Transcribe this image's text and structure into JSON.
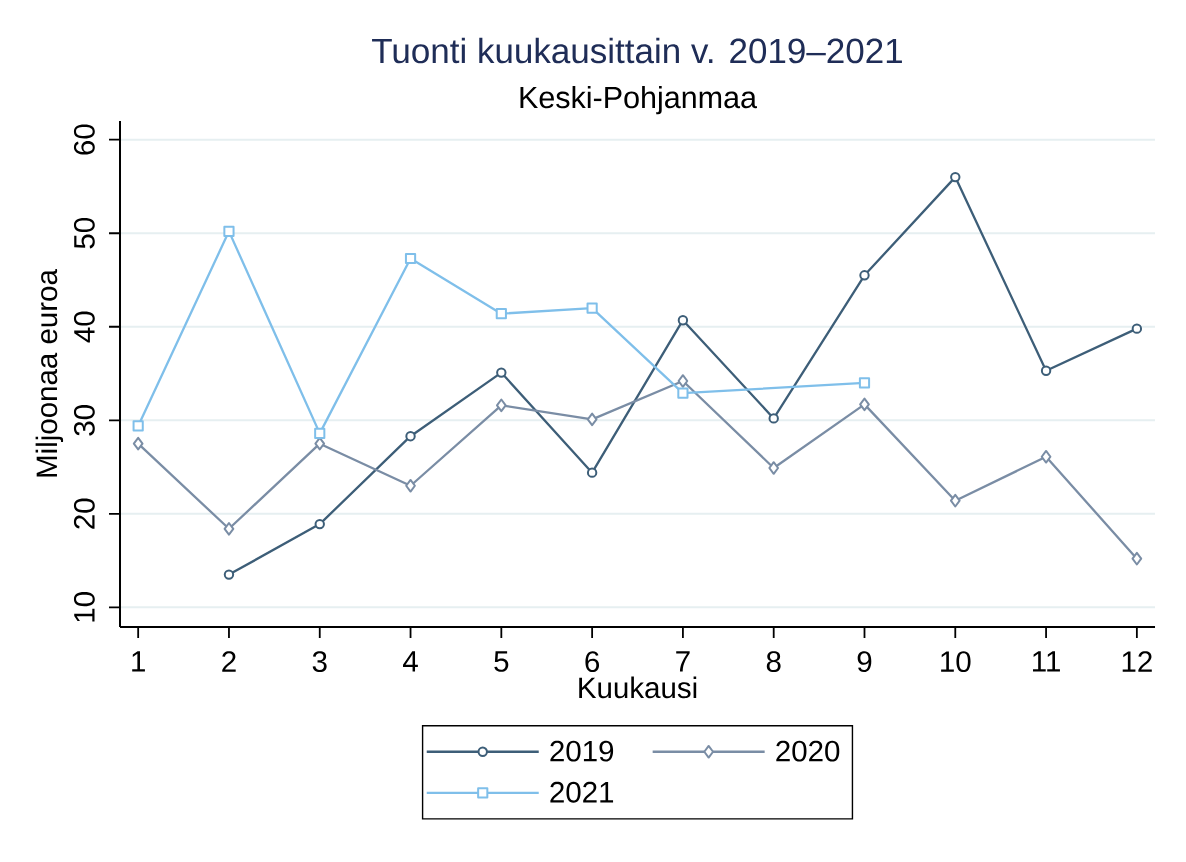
{
  "chart_data": {
    "type": "line",
    "title": "Tuonti kuukausittain v. 2019–2021",
    "subtitle": "Keski-Pohjanmaa",
    "xlabel": "Kuukausi",
    "ylabel": "Miljoonaa euroa",
    "x": [
      1,
      2,
      3,
      4,
      5,
      6,
      7,
      8,
      9,
      10,
      11,
      12
    ],
    "series": [
      {
        "name": "2019",
        "color": "#3d5e78",
        "marker": "circle",
        "values": [
          null,
          13.5,
          18.9,
          28.3,
          35.1,
          24.4,
          40.7,
          30.2,
          45.5,
          56.0,
          35.3,
          39.8
        ]
      },
      {
        "name": "2020",
        "color": "#7a8da5",
        "marker": "diamond",
        "values": [
          27.5,
          18.4,
          27.5,
          23.0,
          31.6,
          30.1,
          34.2,
          24.9,
          31.7,
          21.4,
          26.1,
          15.2
        ]
      },
      {
        "name": "2021",
        "color": "#7fbfea",
        "marker": "square",
        "x": [
          1,
          2,
          3,
          4,
          5,
          6,
          7,
          9
        ],
        "values": [
          29.4,
          50.2,
          28.6,
          47.3,
          41.4,
          42.0,
          32.9,
          34.0
        ]
      }
    ],
    "xlim": [
      0.8,
      12.2
    ],
    "ylim": [
      7.9,
      62
    ],
    "xticks": [
      1,
      2,
      3,
      4,
      5,
      6,
      7,
      8,
      9,
      10,
      11,
      12
    ],
    "yticks": [
      10,
      20,
      30,
      40,
      50,
      60
    ],
    "grid": "y",
    "legend": "bottom",
    "line_style": "solid"
  }
}
